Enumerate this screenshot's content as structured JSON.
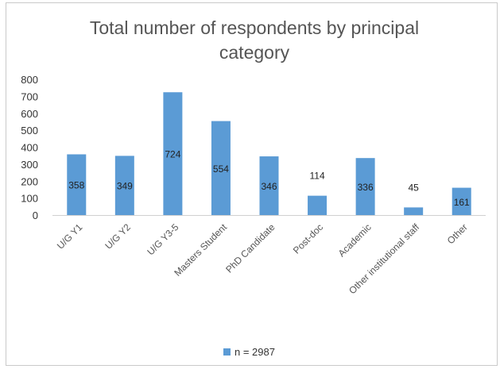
{
  "chart_data": {
    "type": "bar",
    "title_lines": [
      "Total number of respondents by principal",
      "category"
    ],
    "categories": [
      "U/G Y1",
      "U/G Y2",
      "U/G Y3-5",
      "Masters Student",
      "PhD Candidate",
      "Post-doc",
      "Academic",
      "Other institutional staff",
      "Other"
    ],
    "series": [
      {
        "name": "n = 2987",
        "values": [
          358,
          349,
          724,
          554,
          346,
          114,
          336,
          45,
          161
        ]
      }
    ],
    "data_labels": [
      "358",
      "349",
      "724",
      "554",
      "346",
      "114",
      "336",
      "45",
      "161"
    ],
    "y_ticks": [
      "0",
      "100",
      "200",
      "300",
      "400",
      "500",
      "600",
      "700",
      "800"
    ],
    "ylim": [
      0,
      800
    ],
    "bar_color": "#5B9BD5",
    "grid": false,
    "legend_position": "bottom"
  }
}
